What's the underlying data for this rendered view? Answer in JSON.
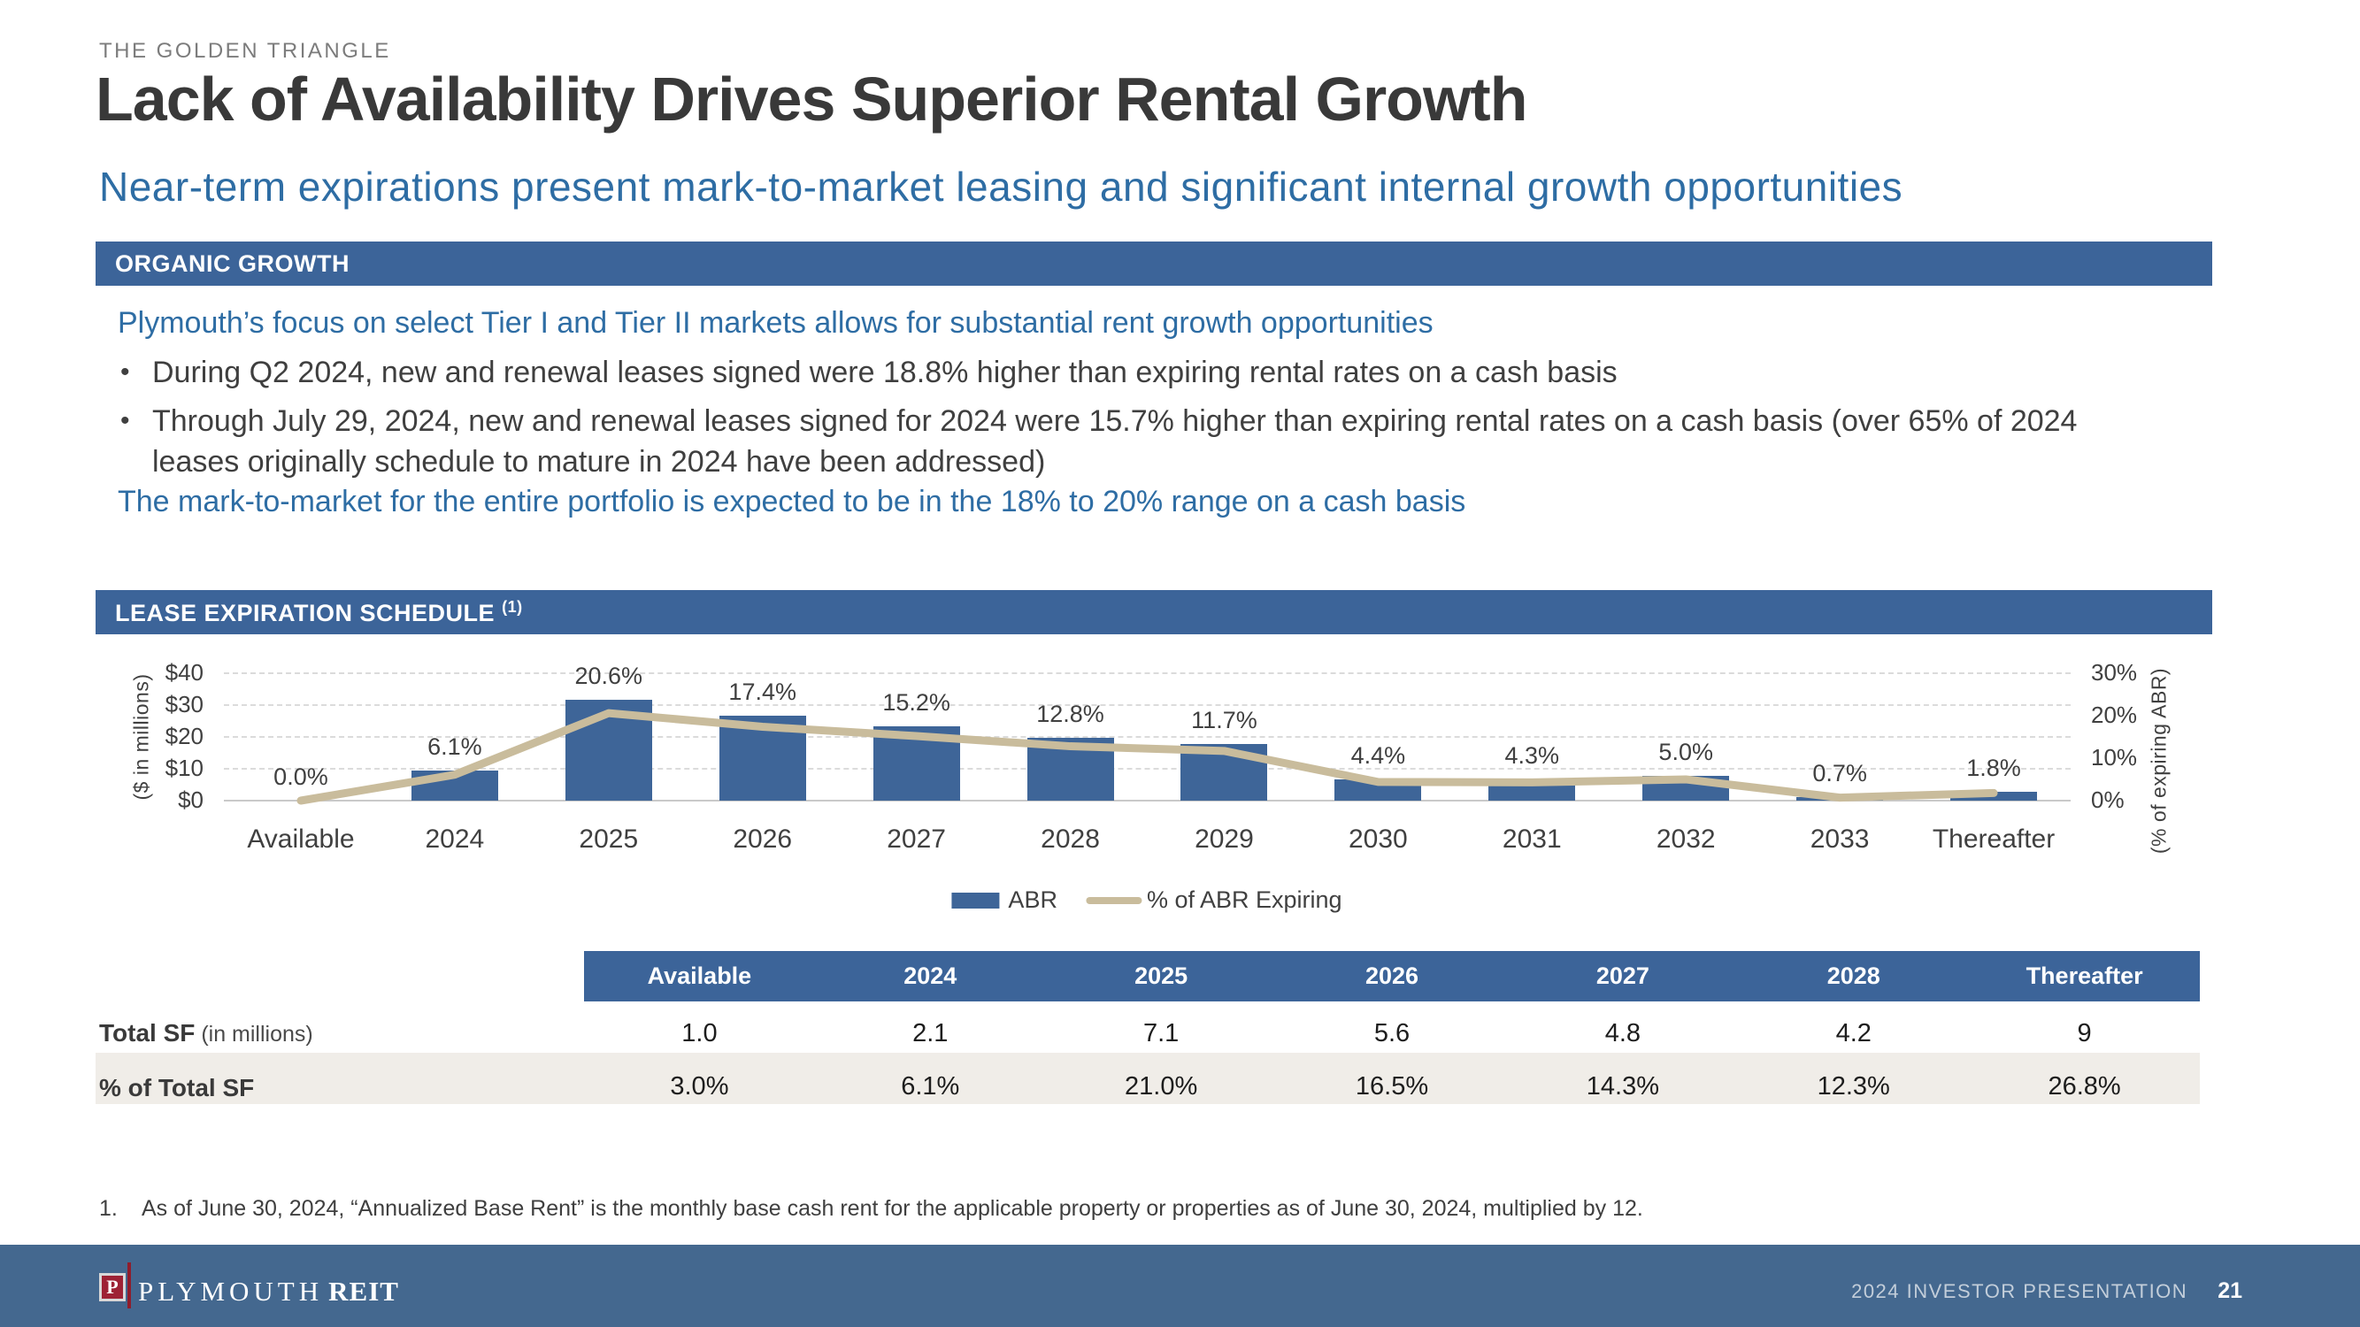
{
  "eyebrow": "THE GOLDEN TRIANGLE",
  "title": "Lack of Availability Drives Superior Rental Growth",
  "subtitle": "Near-term expirations present mark-to-market leasing and significant internal growth opportunities",
  "organic": {
    "banner": "ORGANIC GROWTH",
    "lead": "Plymouth’s focus on select Tier I and Tier II markets allows for substantial rent growth opportunities",
    "bullets": [
      "During Q2 2024, new and renewal leases signed were 18.8% higher than expiring rental rates on a cash basis",
      "Through July 29, 2024, new and renewal leases signed for 2024 were 15.7% higher than expiring rental rates on a cash basis (over 65% of 2024 leases originally schedule to mature in 2024 have been addressed)"
    ],
    "closing": "The mark-to-market for the entire portfolio is expected to be in the 18% to 20% range on a cash basis"
  },
  "lease_banner": {
    "text": "LEASE EXPIRATION SCHEDULE",
    "sup": "(1)"
  },
  "chart_data": {
    "type": "bar+line",
    "categories": [
      "Available",
      "2024",
      "2025",
      "2026",
      "2027",
      "2028",
      "2029",
      "2030",
      "2031",
      "2032",
      "2033",
      "Thereafter"
    ],
    "series": [
      {
        "name": "ABR",
        "type": "bar",
        "axis": "left",
        "values_millions": [
          0,
          9.4,
          31.6,
          26.7,
          23.3,
          19.6,
          17.9,
          6.7,
          6.6,
          7.7,
          1.1,
          2.8
        ]
      },
      {
        "name": "% of ABR Expiring",
        "type": "line",
        "axis": "right",
        "values_pct": [
          0.0,
          6.1,
          20.6,
          17.4,
          15.2,
          12.8,
          11.7,
          4.4,
          4.3,
          5.0,
          0.7,
          1.8
        ]
      }
    ],
    "point_labels": [
      "0.0%",
      "6.1%",
      "20.6%",
      "17.4%",
      "15.2%",
      "12.8%",
      "11.7%",
      "4.4%",
      "4.3%",
      "5.0%",
      "0.7%",
      "1.8%"
    ],
    "left_axis": {
      "title": "($ in millions)",
      "ticks": [
        "$0",
        "$10",
        "$20",
        "$30",
        "$40"
      ],
      "range": [
        0,
        40
      ]
    },
    "right_axis": {
      "title": "(% of expiring ABR)",
      "ticks": [
        "0%",
        "10%",
        "20%",
        "30%"
      ],
      "range": [
        0,
        30
      ]
    },
    "legend": [
      "ABR",
      "% of ABR Expiring"
    ],
    "grid": true
  },
  "table": {
    "columns": [
      "Available",
      "2024",
      "2025",
      "2026",
      "2027",
      "2028",
      "Thereafter"
    ],
    "rows": [
      {
        "label": "Total SF",
        "label_rest": " (in millions)",
        "values": [
          "1.0",
          "2.1",
          "7.1",
          "5.6",
          "4.8",
          "4.2",
          "9"
        ]
      },
      {
        "label": "% of Total SF",
        "label_rest": "",
        "values": [
          "3.0%",
          "6.1%",
          "21.0%",
          "16.5%",
          "14.3%",
          "12.3%",
          "26.8%"
        ]
      }
    ]
  },
  "footnote": {
    "num": "1.",
    "text": "As of June 30, 2024, “Annualized Base Rent” is the monthly base cash rent for the applicable property or properties as of June 30, 2024, multiplied by 12."
  },
  "footer": {
    "p": "P",
    "name": "PLYMOUTH",
    "suffix": "REIT",
    "right": "2024 INVESTOR PRESENTATION",
    "page": "21"
  },
  "colors": {
    "banner_blue": "#3C6499",
    "bar_blue": "#3E6598",
    "line_tan": "#C9BC9C",
    "footer_blue": "#44688F",
    "beige": "#F0EDE8",
    "text_blue": "#2E6DA4"
  }
}
